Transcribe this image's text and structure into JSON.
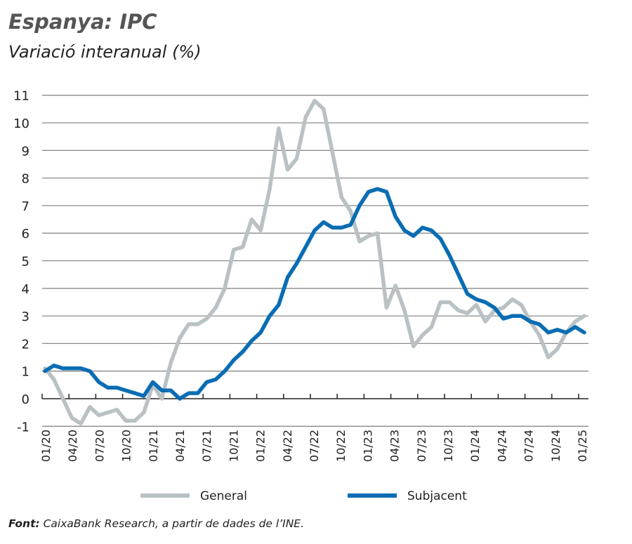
{
  "title": "Espanya: IPC",
  "subtitle": "Variació interanual (%)",
  "footer": {
    "label": "Font:",
    "text": " CaixaBank Research, a partir de dades de l’INE."
  },
  "chart_data": {
    "type": "line",
    "title": "Espanya: IPC",
    "subtitle": "Variació interanual (%)",
    "xlabel": "",
    "ylabel": "",
    "ylim": [
      -1,
      11
    ],
    "yticks": [
      "-1",
      "0",
      "1",
      "2",
      "3",
      "4",
      "5",
      "6",
      "7",
      "8",
      "9",
      "10",
      "11"
    ],
    "grid": true,
    "legend_position": "bottom",
    "x_start": "01/20",
    "x_end": "01/25",
    "frequency": "monthly",
    "xticks": [
      "01/20",
      "04/20",
      "07/20",
      "10/20",
      "01/21",
      "04/21",
      "07/21",
      "10/21",
      "01/22",
      "04/22",
      "07/22",
      "10/22",
      "01/23",
      "04/23",
      "07/23",
      "10/23",
      "01/24",
      "04/24",
      "07/24",
      "10/24",
      "01/25"
    ],
    "series": [
      {
        "name": "General",
        "color": "#b9c1c4",
        "values": [
          1.1,
          0.7,
          0.0,
          -0.7,
          -0.9,
          -0.3,
          -0.6,
          -0.5,
          -0.4,
          -0.8,
          -0.8,
          -0.5,
          0.5,
          0.0,
          1.3,
          2.2,
          2.7,
          2.7,
          2.9,
          3.3,
          4.0,
          5.4,
          5.5,
          6.5,
          6.1,
          7.6,
          9.8,
          8.3,
          8.7,
          10.2,
          10.8,
          10.5,
          8.9,
          7.3,
          6.8,
          5.7,
          5.9,
          6.0,
          3.3,
          4.1,
          3.2,
          1.9,
          2.3,
          2.6,
          3.5,
          3.5,
          3.2,
          3.1,
          3.4,
          2.8,
          3.2,
          3.3,
          3.6,
          3.4,
          2.8,
          2.3,
          1.5,
          1.8,
          2.4,
          2.8,
          3.0
        ]
      },
      {
        "name": "Subjacent",
        "color": "#0a6db3",
        "values": [
          1.0,
          1.2,
          1.1,
          1.1,
          1.1,
          1.0,
          0.6,
          0.4,
          0.4,
          0.3,
          0.2,
          0.1,
          0.6,
          0.3,
          0.3,
          0.0,
          0.2,
          0.2,
          0.6,
          0.7,
          1.0,
          1.4,
          1.7,
          2.1,
          2.4,
          3.0,
          3.4,
          4.4,
          4.9,
          5.5,
          6.1,
          6.4,
          6.2,
          6.2,
          6.3,
          7.0,
          7.5,
          7.6,
          7.5,
          6.6,
          6.1,
          5.9,
          6.2,
          6.1,
          5.8,
          5.2,
          4.5,
          3.8,
          3.6,
          3.5,
          3.3,
          2.9,
          3.0,
          3.0,
          2.8,
          2.7,
          2.4,
          2.5,
          2.4,
          2.6,
          2.4
        ]
      }
    ]
  }
}
